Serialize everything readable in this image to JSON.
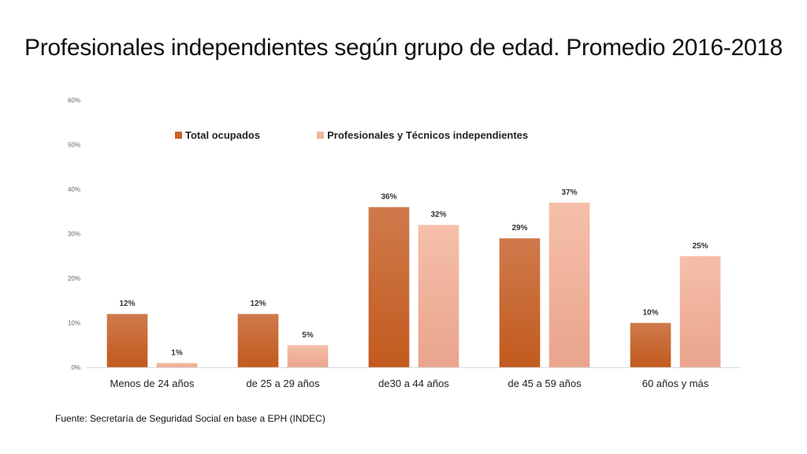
{
  "title": "Profesionales independientes según grupo de edad. Promedio 2016-2018",
  "source": "Fuente: Secretaría de Seguridad Social en base a EPH (INDEC)",
  "colors": {
    "total_top": "#cf7a4c",
    "total_bottom": "#c25a1e",
    "prof_top": "#f6bfaa",
    "prof_bottom": "#e9a48c"
  },
  "chart_data": {
    "type": "bar",
    "categories": [
      "Menos de 24 años",
      "de 25 a 29 años",
      "de30 a 44 años",
      "de 45 a 59 años",
      "60 años y más"
    ],
    "series": [
      {
        "name": "Total ocupados",
        "values": [
          12,
          12,
          36,
          29,
          10
        ],
        "labels": [
          "12%",
          "12%",
          "36%",
          "29%",
          "10%"
        ]
      },
      {
        "name": "Profesionales y Técnicos independientes",
        "values": [
          1,
          5,
          32,
          37,
          25
        ],
        "labels": [
          "1%",
          "5%",
          "32%",
          "37%",
          "25%"
        ]
      }
    ],
    "yticks": [
      "0%",
      "10%",
      "20%",
      "30%",
      "40%",
      "50%",
      "60%"
    ],
    "ylim": [
      0,
      60
    ],
    "legend": "top",
    "grid": false
  }
}
